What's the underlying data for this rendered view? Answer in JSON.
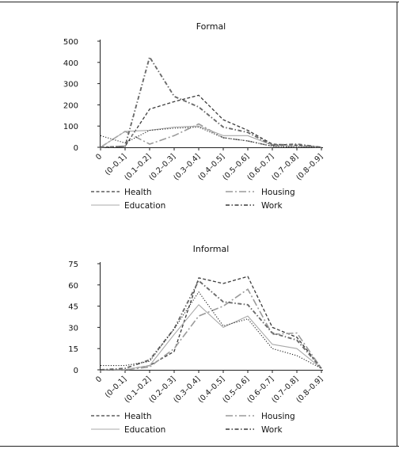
{
  "chart_data": [
    {
      "type": "line",
      "title": "Formal",
      "categories": [
        "0",
        "(0–0.1]",
        "(0.1–0.2]",
        "(0.2–0.3]",
        "(0.3–0.4]",
        "(0.4–0.5]",
        "(0.5–0.6]",
        "(0.6–0.7]",
        "(0.7–0.8]",
        "(0.8–0.9]"
      ],
      "ylim": [
        0,
        500
      ],
      "yticks": [
        "0",
        "100",
        "200",
        "300",
        "400",
        "500"
      ],
      "grid": false,
      "legend_position": "bottom",
      "series": [
        {
          "name": "Health",
          "values": [
            0,
            5,
            180,
            215,
            245,
            130,
            80,
            15,
            10,
            0
          ]
        },
        {
          "name": "Housing",
          "values": [
            0,
            75,
            15,
            55,
            110,
            45,
            30,
            5,
            5,
            0
          ]
        },
        {
          "name": "Education",
          "values": [
            0,
            75,
            80,
            95,
            100,
            55,
            55,
            10,
            5,
            0
          ]
        },
        {
          "name": "Work",
          "values": [
            0,
            5,
            425,
            240,
            190,
            95,
            70,
            10,
            15,
            0
          ]
        },
        {
          "name": "",
          "values": [
            55,
            20,
            80,
            90,
            95,
            45,
            30,
            5,
            0,
            0
          ]
        }
      ]
    },
    {
      "type": "line",
      "title": "Informal",
      "categories": [
        "0",
        "(0–0.1]",
        "(0.1–0.2]",
        "(0.2–0.3]",
        "(0.3–0.4]",
        "(0.4–0.5]",
        "(0.5–0.6]",
        "(0.6–0.7]",
        "(0.7–0.8]",
        "(0.8–0.9]"
      ],
      "ylim": [
        0,
        75
      ],
      "yticks": [
        "0",
        "15",
        "30",
        "45",
        "60",
        "75"
      ],
      "grid": false,
      "legend_position": "bottom",
      "series": [
        {
          "name": "Health",
          "values": [
            0,
            0,
            3,
            13,
            65,
            61,
            66,
            30,
            23,
            1
          ]
        },
        {
          "name": "Housing",
          "values": [
            0,
            0,
            2,
            15,
            38,
            45,
            57,
            25,
            26,
            1
          ]
        },
        {
          "name": "Education",
          "values": [
            0,
            0,
            3,
            25,
            46,
            30,
            38,
            18,
            15,
            1
          ]
        },
        {
          "name": "Work",
          "values": [
            0,
            1,
            7,
            29,
            63,
            48,
            46,
            26,
            21,
            1
          ]
        },
        {
          "name": "",
          "values": [
            3,
            3,
            6,
            29,
            55,
            31,
            36,
            15,
            10,
            1
          ]
        }
      ]
    }
  ],
  "colors": {
    "Health": "#3a3a3a",
    "Housing": "#9a9a9a",
    "Education": "#a8a8a8",
    "Work": "#6a6a6a",
    "unnamed": "#222222"
  }
}
